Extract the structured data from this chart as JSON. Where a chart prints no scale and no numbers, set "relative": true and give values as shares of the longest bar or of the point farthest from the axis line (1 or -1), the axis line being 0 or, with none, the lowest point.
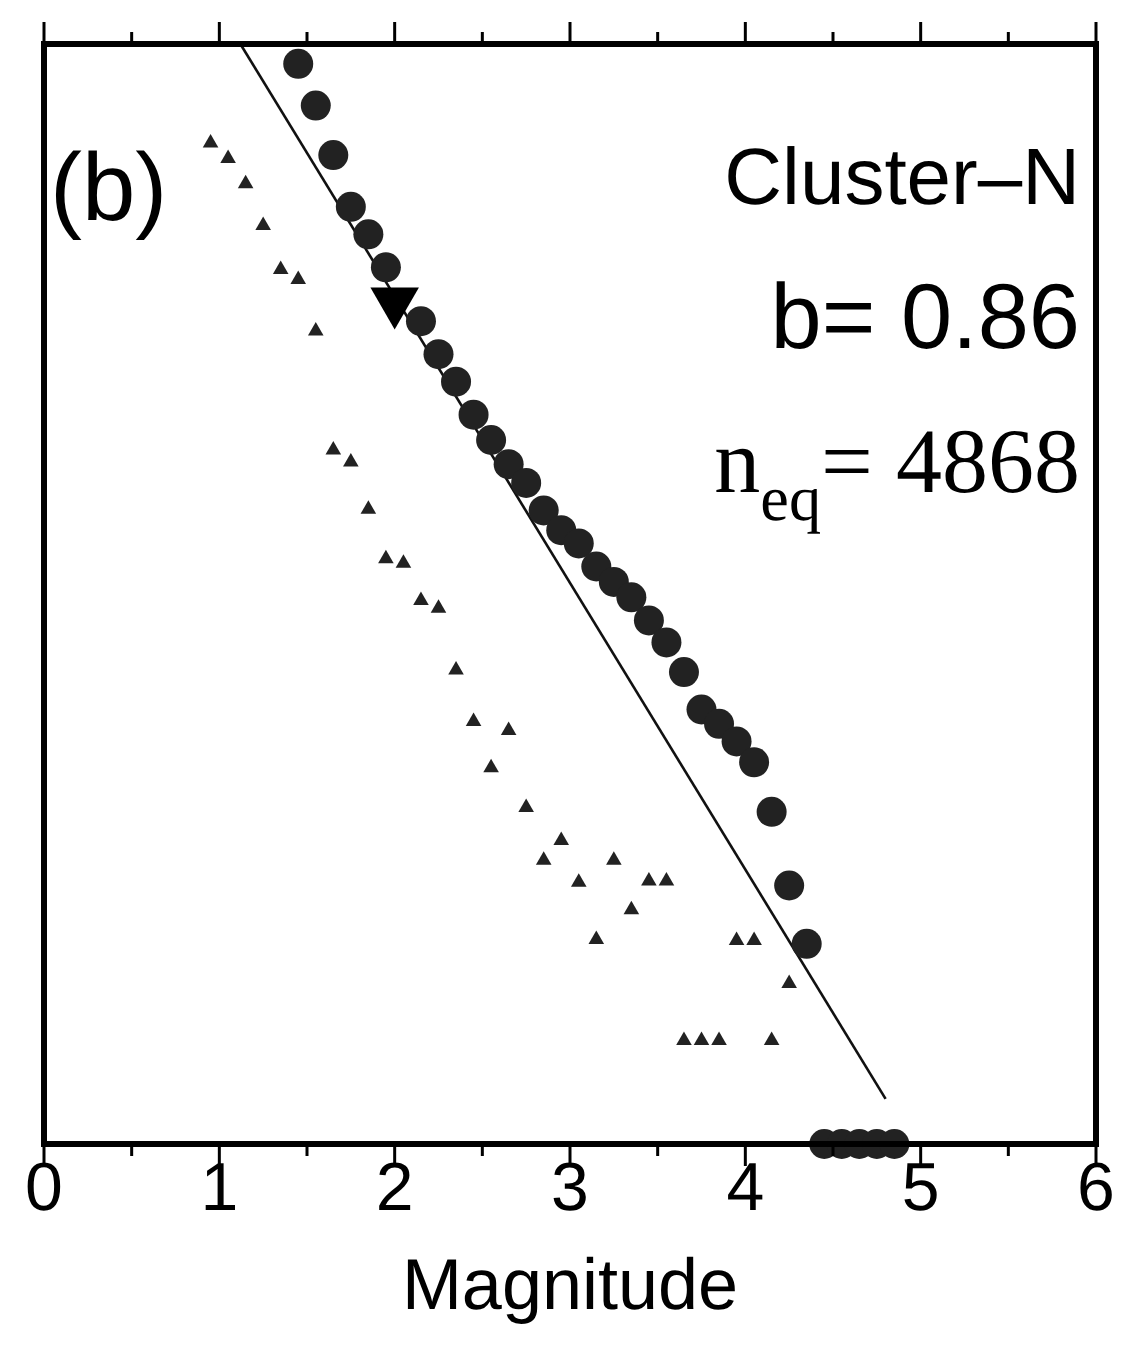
{
  "chart_data": {
    "type": "scatter",
    "relative": true,
    "xlabel": "Magnitude",
    "annotations": [
      "(b)",
      "Cluster–N",
      "b= 0.86",
      "n$_{eq}$= 4868"
    ],
    "xlim": [
      0,
      6
    ],
    "xticks": [
      0,
      {
        "value": 0.5,
        "label": null
      },
      1,
      {
        "value": 1.5,
        "label": null
      },
      2,
      {
        "value": 2.5,
        "label": null
      },
      3,
      {
        "value": 3.5,
        "label": null
      },
      4,
      {
        "value": 4.5,
        "label": null
      },
      5,
      {
        "value": 5.5,
        "label": null
      },
      6
    ],
    "grid": false,
    "legend": false,
    "tick_labels": "x",
    "series": [
      {
        "marker": "circle",
        "color": "#222222",
        "x": [
          1.45,
          1.55,
          1.65,
          1.75,
          1.85,
          1.95,
          2.05,
          2.15,
          2.25,
          2.35,
          2.45,
          2.55,
          2.65,
          2.75,
          2.85,
          2.95,
          3.05,
          3.15,
          3.25,
          3.35,
          3.45,
          3.55,
          3.65,
          3.75,
          3.85,
          3.95,
          4.05,
          4.15,
          4.25,
          4.35,
          4.45,
          4.55,
          4.65,
          4.75,
          4.85
        ],
        "values": [
          0.982,
          0.944,
          0.899,
          0.852,
          0.827,
          0.797,
          null,
          0.748,
          0.718,
          0.693,
          0.663,
          0.64,
          0.618,
          0.601,
          0.576,
          0.558,
          0.546,
          0.525,
          0.511,
          0.497,
          0.476,
          0.456,
          0.429,
          0.395,
          0.382,
          0.366,
          0.347,
          0.302,
          0.235,
          0.182,
          0,
          0,
          0,
          0,
          0
        ]
      },
      {
        "marker": "triangle",
        "color": "#222222",
        "x": [
          0.95,
          1.05,
          1.15,
          1.25,
          1.35,
          1.45,
          1.55,
          1.65,
          1.75,
          1.85,
          1.95,
          2.05,
          2.15,
          2.25,
          2.35,
          2.45,
          2.55,
          2.65,
          2.75,
          2.85,
          2.95,
          3.05,
          3.15,
          3.25,
          3.35,
          3.45,
          3.55,
          3.65,
          3.75,
          3.85,
          3.95,
          4.05,
          4.15,
          4.25
        ],
        "values": [
          0.91,
          0.896,
          0.873,
          0.835,
          0.795,
          0.786,
          0.739,
          0.631,
          0.62,
          0.577,
          0.532,
          0.528,
          0.494,
          0.487,
          0.431,
          0.384,
          0.342,
          0.376,
          0.306,
          0.258,
          0.276,
          0.238,
          0.186,
          0.258,
          0.213,
          0.239,
          0.239,
          0.094,
          0.094,
          0.094,
          0.185,
          0.185,
          0.094,
          0.146
        ]
      },
      {
        "type": "line",
        "marker": "none",
        "color": "#111111",
        "line_style": "solid",
        "x": [
          1.12,
          4.8
        ],
        "values": [
          1,
          0.041
        ]
      },
      {
        "marker": "triangle",
        "color": "#000000",
        "x": [
          2.0
        ],
        "values": [
          0.766
        ]
      }
    ]
  }
}
